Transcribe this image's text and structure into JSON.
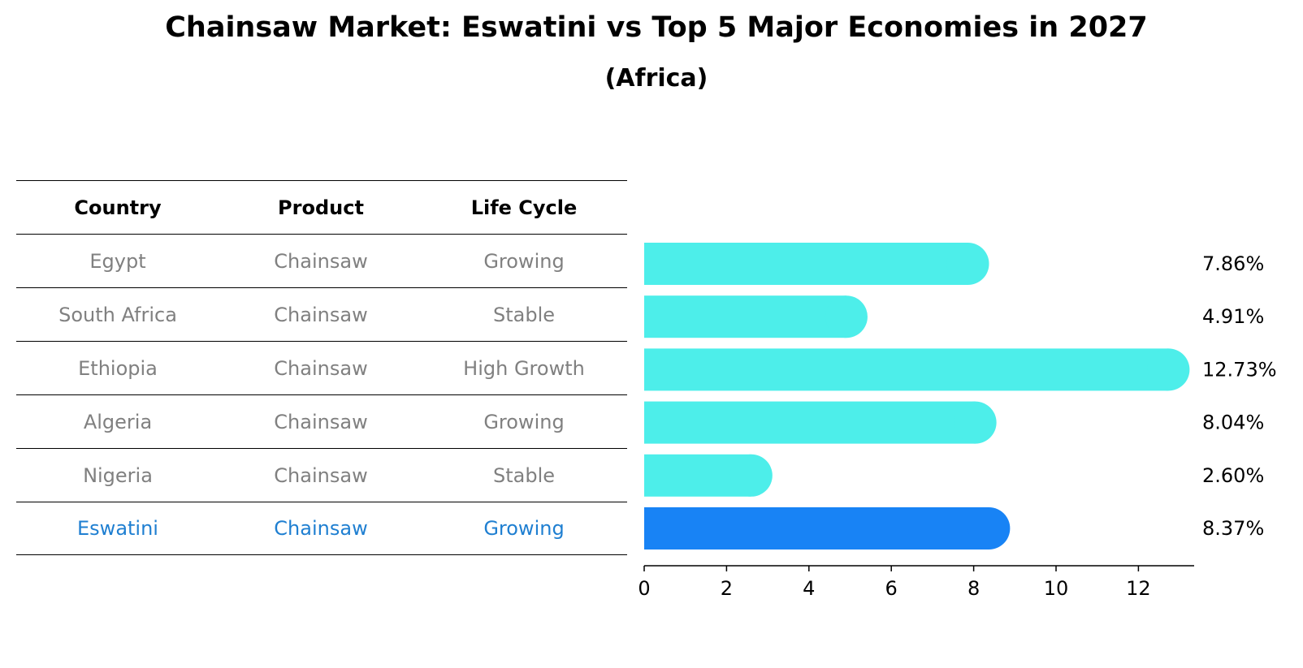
{
  "title": "Chainsaw Market: Eswatini vs Top 5 Major Economies in 2027",
  "subtitle": "(Africa)",
  "table": {
    "headers": [
      "Country",
      "Product",
      "Life Cycle"
    ],
    "rows": [
      {
        "country": "Egypt",
        "product": "Chainsaw",
        "life_cycle": "Growing"
      },
      {
        "country": "South Africa",
        "product": "Chainsaw",
        "life_cycle": "Stable"
      },
      {
        "country": "Ethiopia",
        "product": "Chainsaw",
        "life_cycle": "High Growth"
      },
      {
        "country": "Algeria",
        "product": "Chainsaw",
        "life_cycle": "Growing"
      },
      {
        "country": "Nigeria",
        "product": "Chainsaw",
        "life_cycle": "Stable"
      },
      {
        "country": "Eswatini",
        "product": "Chainsaw",
        "life_cycle": "Growing"
      }
    ],
    "highlight_index": 5
  },
  "colors": {
    "bar": "#4deeea",
    "highlight_bar": "#1883f5",
    "highlight_text": "#1f7fd1",
    "muted_text": "#808080"
  },
  "chart_data": {
    "type": "bar",
    "orientation": "horizontal",
    "categories": [
      "Egypt",
      "South Africa",
      "Ethiopia",
      "Algeria",
      "Nigeria",
      "Eswatini"
    ],
    "values": [
      7.86,
      4.91,
      12.73,
      8.04,
      2.6,
      8.37
    ],
    "value_labels": [
      "7.86%",
      "4.91%",
      "12.73%",
      "8.04%",
      "2.60%",
      "8.37%"
    ],
    "xlim": [
      0,
      13.4
    ],
    "xticks": [
      0,
      2,
      4,
      6,
      8,
      10,
      12
    ],
    "highlight": "Eswatini",
    "grid": false
  }
}
